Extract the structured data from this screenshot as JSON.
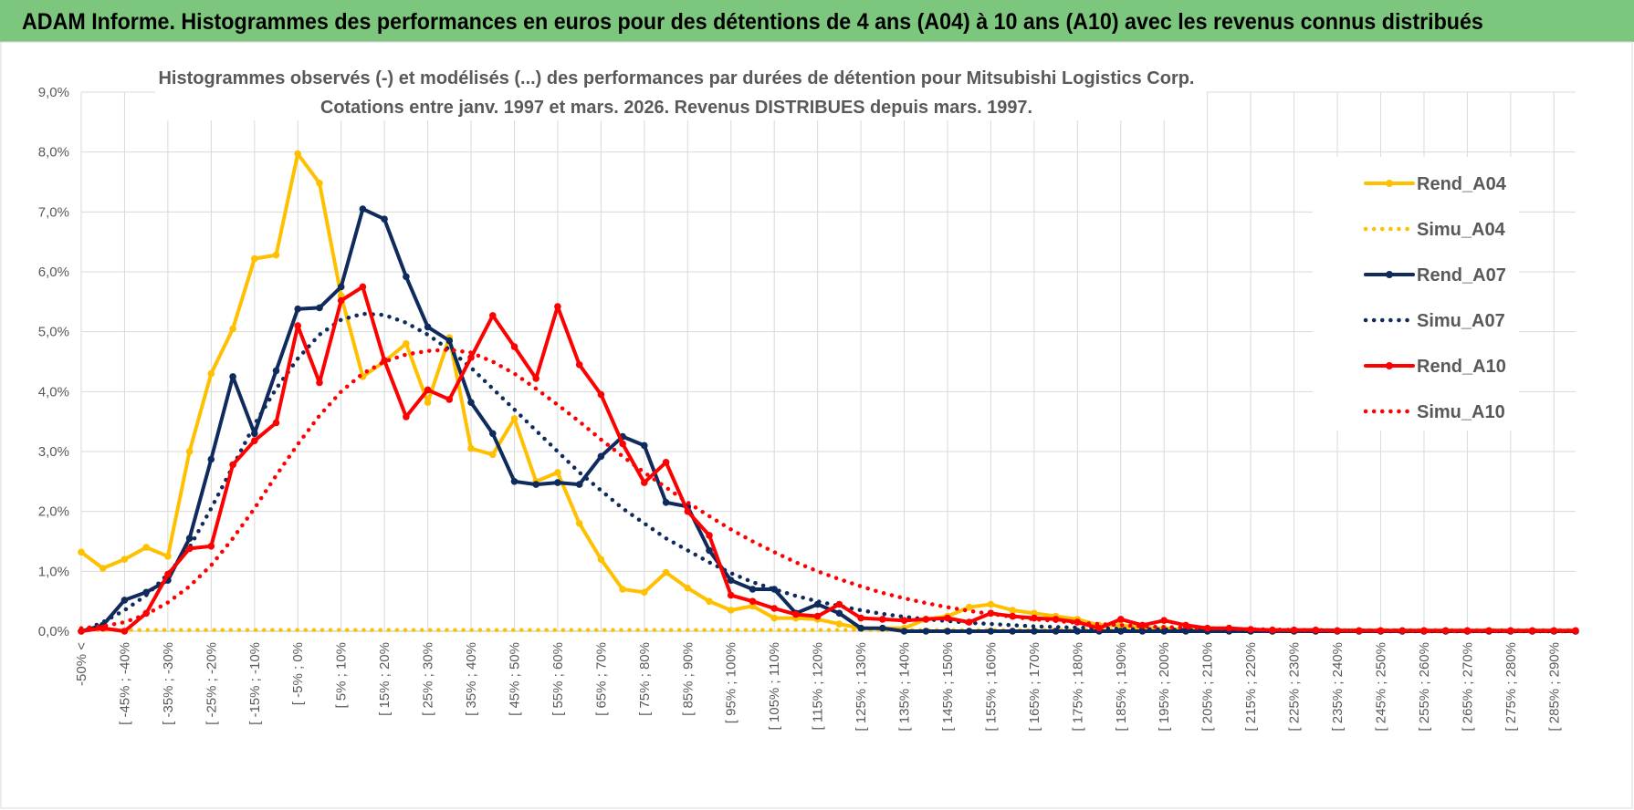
{
  "banner": {
    "title": "ADAM Informe. Histogrammes des performances en euros pour des détentions de 4 ans (A04) à 10 ans (A10) avec les revenus connus distribués",
    "background": "#7dc67d"
  },
  "chart_data": {
    "type": "line",
    "title_lines": [
      "Histogrammes observés (-) et modélisés (...) des performances par durées de détention pour Mitsubishi Logistics Corp.",
      "Cotations entre janv. 1997 et mars. 2026. Revenus DISTRIBUES depuis mars. 1997."
    ],
    "xlabel": "",
    "ylabel": "",
    "ylim": [
      0,
      9
    ],
    "y_ticks": [
      "0,0%",
      "1,0%",
      "2,0%",
      "3,0%",
      "4,0%",
      "5,0%",
      "6,0%",
      "7,0%",
      "8,0%",
      "9,0%"
    ],
    "legend_position": "right",
    "categories": [
      "-50% <",
      "[ -50% ; -45%",
      "[ -45% ; -40%",
      "[ -40% ; -35%",
      "[ -35% ; -30%",
      "[ -30% ; -25%",
      "[ -25% ; -20%",
      "[ -20% ; -15%",
      "[ -15% ; -10%",
      "[ -10% ; -5%",
      "[ -5% ; 0%",
      "[ 0% ; 5%",
      "[ 5% ; 10%",
      "[ 10% ; 15%",
      "[ 15% ; 20%",
      "[ 20% ; 25%",
      "[ 25% ; 30%",
      "[ 30% ; 35%",
      "[ 35% ; 40%",
      "[ 40% ; 45%",
      "[ 45% ; 50%",
      "[ 50% ; 55%",
      "[ 55% ; 60%",
      "[ 60% ; 65%",
      "[ 65% ; 70%",
      "[ 70% ; 75%",
      "[ 75% ; 80%",
      "[ 80% ; 85%",
      "[ 85% ; 90%",
      "[ 90% ; 95%",
      "[ 95% ; 100%",
      "[ 100% ; 105%",
      "[ 105% ; 110%",
      "[ 110% ; 115%",
      "[ 115% ; 120%",
      "[ 120% ; 125%",
      "[ 125% ; 130%",
      "[ 130% ; 135%",
      "[ 135% ; 140%",
      "[ 140% ; 145%",
      "[ 145% ; 150%",
      "[ 150% ; 155%",
      "[ 155% ; 160%",
      "[ 160% ; 165%",
      "[ 165% ; 170%",
      "[ 170% ; 175%",
      "[ 175% ; 180%",
      "[ 180% ; 185%",
      "[ 185% ; 190%",
      "[ 190% ; 195%",
      "[ 195% ; 200%",
      "[ 200% ; 205%",
      "[ 205% ; 210%",
      "[ 210% ; 215%",
      "[ 215% ; 220%",
      "[ 220% ; 225%",
      "[ 225% ; 230%",
      "[ 230% ; 235%",
      "[ 235% ; 240%",
      "[ 240% ; 245%",
      "[ 245% ; 250%",
      "[ 250% ; 255%",
      "[ 255% ; 260%",
      "[ 260% ; 265%",
      "[ 265% ; 270%",
      "[ 270% ; 275%",
      "[ 275% ; 280%",
      "[ 280% ; 285%",
      "[ 285% ; 290%",
      "[ 290% ; 295%"
    ],
    "visible_tick_labels": [
      "-50% <",
      "[ -45% ; -40%",
      "[ -35% ; -30%",
      "[ -25% ; -20%",
      "[ -15% ; -10%",
      "[ -5% ; 0%",
      "[ 5% ; 10%",
      "[ 15% ; 20%",
      "[ 25% ; 30%",
      "[ 35% ; 40%",
      "[ 45% ; 50%",
      "[ 55% ; 60%",
      "[ 65% ; 70%",
      "[ 75% ; 80%",
      "[ 85% ; 90%",
      "[ 95% ; 100%",
      "[ 105% ; 110%",
      "[ 115% ; 120%",
      "[ 125% ; 130%",
      "[ 135% ; 140%",
      "[ 145% ; 150%",
      "[ 155% ; 160%",
      "[ 165% ; 170%",
      "[ 175% ; 180%",
      "[ 185% ; 190%",
      "[ 195% ; 200%",
      "[ 205% ; 210%",
      "[ 215% ; 220%",
      "[ 225% ; 230%",
      "[ 235% ; 240%",
      "[ 245% ; 250%",
      "[ 255% ; 260%",
      "[ 265% ; 270%",
      "[ 275% ; 280%",
      "[ 285% ; 290%"
    ],
    "series": [
      {
        "name": "Rend_A04",
        "color": "#ffc000",
        "style": "solid",
        "values": [
          1.32,
          1.05,
          1.2,
          1.4,
          1.25,
          3.0,
          4.3,
          5.05,
          6.22,
          6.28,
          7.97,
          7.48,
          5.6,
          4.25,
          4.5,
          4.8,
          3.82,
          4.9,
          3.05,
          2.95,
          3.55,
          2.5,
          2.65,
          1.8,
          1.2,
          0.7,
          0.65,
          0.98,
          0.72,
          0.5,
          0.35,
          0.42,
          0.22,
          0.22,
          0.2,
          0.12,
          0.05,
          0.05,
          0.05,
          0.2,
          0.25,
          0.4,
          0.45,
          0.35,
          0.3,
          0.25,
          0.2,
          0.1,
          0.1,
          0.05,
          0.05,
          0.02,
          0.02,
          0.02,
          0.0,
          0.0,
          0.0,
          0.0,
          0.0,
          0.0,
          0.0,
          0.0,
          0.0,
          0.0,
          0.0,
          0.0,
          0.0,
          0.0,
          0.0,
          0.0
        ]
      },
      {
        "name": "Simu_A04",
        "color": "#ffc000",
        "style": "dotted",
        "values": [
          0.02,
          0.02,
          0.02,
          0.02,
          0.02,
          0.02,
          0.02,
          0.02,
          0.02,
          0.02,
          0.02,
          0.02,
          0.02,
          0.02,
          0.02,
          0.02,
          0.02,
          0.02,
          0.02,
          0.02,
          0.02,
          0.02,
          0.02,
          0.02,
          0.02,
          0.02,
          0.02,
          0.02,
          0.02,
          0.02,
          0.02,
          0.02,
          0.02,
          0.02,
          0.02,
          0.02,
          0.02,
          0.02,
          0.02,
          0.02,
          0.02,
          0.02,
          0.02,
          0.02,
          0.02,
          0.02,
          0.02,
          0.02,
          0.02,
          0.02,
          0.02,
          0.02,
          0.02,
          0.02,
          0.02,
          0.02,
          0.02,
          0.02,
          0.02,
          0.02,
          0.02,
          0.02,
          0.02,
          0.02,
          0.02,
          0.02,
          0.02,
          0.02,
          0.02,
          0.02
        ]
      },
      {
        "name": "Rend_A07",
        "color": "#0f2a5c",
        "style": "solid",
        "values": [
          0.0,
          0.1,
          0.52,
          0.65,
          0.85,
          1.55,
          2.87,
          4.25,
          3.3,
          4.35,
          5.38,
          5.4,
          5.75,
          7.05,
          6.88,
          5.92,
          5.08,
          4.85,
          3.82,
          3.3,
          2.5,
          2.45,
          2.48,
          2.45,
          2.92,
          3.25,
          3.1,
          2.15,
          2.08,
          1.35,
          0.85,
          0.7,
          0.7,
          0.3,
          0.45,
          0.3,
          0.05,
          0.05,
          0.0,
          0.0,
          0.0,
          0.0,
          0.0,
          0.0,
          0.0,
          0.0,
          0.0,
          0.0,
          0.0,
          0.0,
          0.0,
          0.0,
          0.0,
          0.0,
          0.0,
          0.0,
          0.0,
          0.0,
          0.0,
          0.0,
          0.0,
          0.0,
          0.0,
          0.0,
          0.0,
          0.0,
          0.0,
          0.0,
          0.0,
          0.0
        ]
      },
      {
        "name": "Simu_A07",
        "color": "#0f2a5c",
        "style": "dotted",
        "values": [
          0.0,
          0.15,
          0.35,
          0.6,
          0.95,
          1.4,
          2.05,
          2.75,
          3.45,
          4.05,
          4.55,
          4.95,
          5.2,
          5.3,
          5.28,
          5.15,
          4.95,
          4.7,
          4.4,
          4.05,
          3.7,
          3.35,
          3.0,
          2.65,
          2.35,
          2.05,
          1.8,
          1.55,
          1.35,
          1.15,
          0.97,
          0.82,
          0.7,
          0.59,
          0.5,
          0.42,
          0.35,
          0.29,
          0.24,
          0.2,
          0.17,
          0.14,
          0.12,
          0.1,
          0.08,
          0.07,
          0.06,
          0.05,
          0.04,
          0.03,
          0.03,
          0.02,
          0.02,
          0.02,
          0.01,
          0.01,
          0.01,
          0.01,
          0.01,
          0.01,
          0.0,
          0.0,
          0.0,
          0.0,
          0.0,
          0.0,
          0.0,
          0.0,
          0.0,
          0.0
        ]
      },
      {
        "name": "Rend_A10",
        "color": "#ff0000",
        "style": "solid",
        "values": [
          0.0,
          0.05,
          0.0,
          0.3,
          0.95,
          1.38,
          1.42,
          2.78,
          3.18,
          3.48,
          5.1,
          4.15,
          5.52,
          5.75,
          4.52,
          3.58,
          4.03,
          3.87,
          4.57,
          5.27,
          4.75,
          4.22,
          5.42,
          4.45,
          3.95,
          3.13,
          2.48,
          2.82,
          2.0,
          1.6,
          0.6,
          0.5,
          0.38,
          0.28,
          0.25,
          0.45,
          0.22,
          0.2,
          0.18,
          0.2,
          0.22,
          0.15,
          0.3,
          0.25,
          0.22,
          0.2,
          0.15,
          0.05,
          0.2,
          0.1,
          0.18,
          0.1,
          0.05,
          0.05,
          0.03,
          0.02,
          0.02,
          0.02,
          0.01,
          0.01,
          0.01,
          0.01,
          0.01,
          0.01,
          0.01,
          0.01,
          0.01,
          0.01,
          0.01,
          0.01
        ]
      },
      {
        "name": "Simu_A10",
        "color": "#ff0000",
        "style": "dotted",
        "values": [
          0.05,
          0.08,
          0.15,
          0.28,
          0.48,
          0.75,
          1.1,
          1.55,
          2.05,
          2.6,
          3.12,
          3.6,
          4.0,
          4.3,
          4.5,
          4.62,
          4.68,
          4.7,
          4.65,
          4.5,
          4.3,
          4.05,
          3.78,
          3.5,
          3.2,
          2.92,
          2.65,
          2.4,
          2.15,
          1.92,
          1.7,
          1.5,
          1.32,
          1.15,
          1.0,
          0.87,
          0.75,
          0.64,
          0.55,
          0.47,
          0.4,
          0.34,
          0.29,
          0.24,
          0.2,
          0.17,
          0.14,
          0.12,
          0.1,
          0.08,
          0.07,
          0.06,
          0.05,
          0.04,
          0.03,
          0.03,
          0.02,
          0.02,
          0.01,
          0.01,
          0.01,
          0.01,
          0.0,
          0.0,
          0.0,
          0.0,
          0.0,
          0.0,
          0.0,
          0.0
        ]
      }
    ]
  }
}
